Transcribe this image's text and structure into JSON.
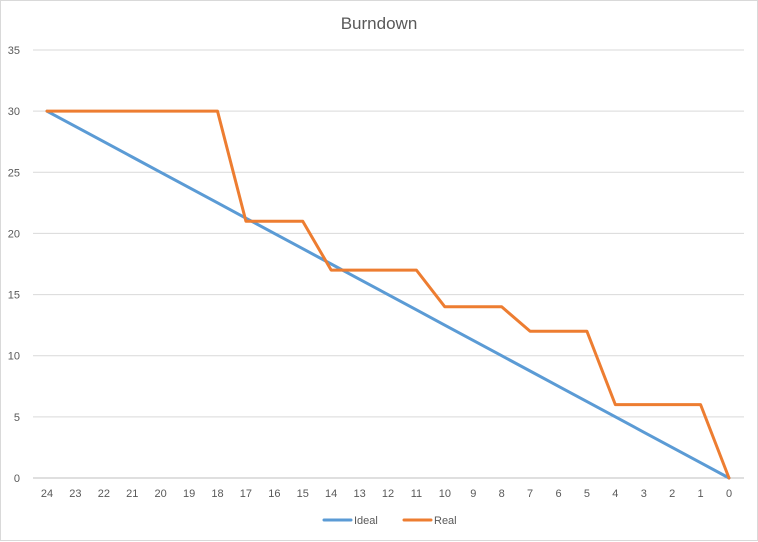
{
  "chart_data": {
    "type": "line",
    "title": "Burndown",
    "xlabel": "",
    "ylabel": "",
    "categories": [
      "24",
      "23",
      "22",
      "21",
      "20",
      "19",
      "18",
      "17",
      "16",
      "15",
      "14",
      "13",
      "12",
      "11",
      "10",
      "9",
      "8",
      "7",
      "6",
      "5",
      "4",
      "3",
      "2",
      "1",
      "0"
    ],
    "ylim": [
      0,
      35
    ],
    "yticks": [
      0,
      5,
      10,
      15,
      20,
      25,
      30,
      35
    ],
    "grid": true,
    "legend_position": "bottom",
    "series": [
      {
        "name": "Ideal",
        "color": "#5b9bd5",
        "values": [
          30,
          28.75,
          27.5,
          26.25,
          25,
          23.75,
          22.5,
          21.25,
          20,
          18.75,
          17.5,
          16.25,
          15,
          13.75,
          12.5,
          11.25,
          10,
          8.75,
          7.5,
          6.25,
          5,
          3.75,
          2.5,
          1.25,
          0
        ]
      },
      {
        "name": "Real",
        "color": "#ed7d31",
        "values": [
          30,
          30,
          30,
          30,
          30,
          30,
          30,
          21,
          21,
          21,
          17,
          17,
          17,
          17,
          14,
          14,
          14,
          12,
          12,
          12,
          6,
          6,
          6,
          6,
          0
        ]
      }
    ]
  }
}
